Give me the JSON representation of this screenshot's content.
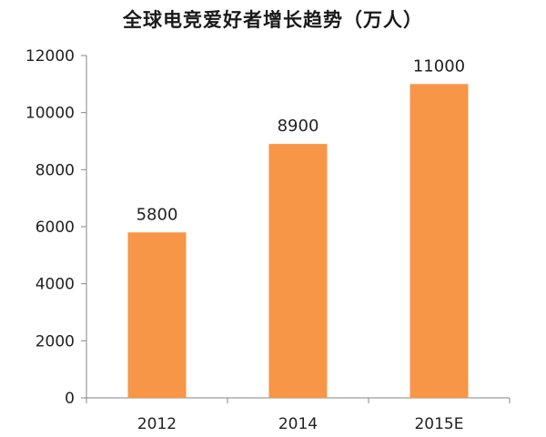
{
  "chart_data": {
    "type": "bar",
    "title": "全球电竞爱好者增长趋势（万人）",
    "categories": [
      "2012",
      "2014",
      "2015E"
    ],
    "values": [
      5800,
      8900,
      11000
    ],
    "data_labels": [
      "5800",
      "8900",
      "11000"
    ],
    "xlabel": "",
    "ylabel": "",
    "ylim": [
      0,
      12000
    ],
    "yticks": [
      0,
      2000,
      4000,
      6000,
      8000,
      10000,
      12000
    ],
    "grid": false,
    "legend": "none",
    "bar_color": "#F79646",
    "axis_color": "#868686"
  }
}
